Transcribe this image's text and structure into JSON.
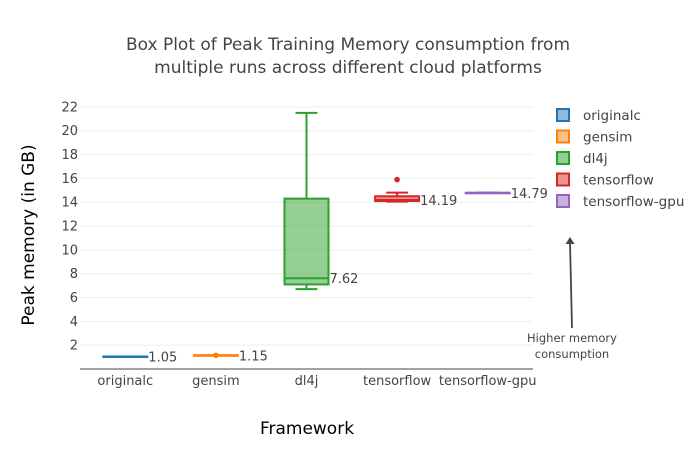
{
  "chart_data": {
    "type": "box",
    "title_lines": [
      "Box Plot of Peak Training Memory consumption from",
      "multiple runs across different cloud platforms"
    ],
    "xlabel": "Framework",
    "ylabel": "Peak memory (in GB)",
    "ylim": [
      0,
      23
    ],
    "yticks": [
      2,
      4,
      6,
      8,
      10,
      12,
      14,
      16,
      18,
      20,
      22
    ],
    "categories": [
      "originalc",
      "gensim",
      "dl4j",
      "tensorflow",
      "tensorflow-gpu"
    ],
    "series": [
      {
        "name": "originalc",
        "color": "#1f77b4",
        "min": 1.05,
        "q1": 1.05,
        "median": 1.05,
        "q3": 1.05,
        "max": 1.05,
        "outliers": [],
        "median_label": "1.05"
      },
      {
        "name": "gensim",
        "color": "#ff7f0e",
        "min": 1.15,
        "q1": 1.15,
        "median": 1.15,
        "q3": 1.15,
        "max": 1.15,
        "outliers": [
          1.15
        ],
        "median_label": "1.15"
      },
      {
        "name": "dl4j",
        "color": "#2ca02c",
        "min": 6.7,
        "q1": 7.1,
        "median": 7.62,
        "q3": 14.3,
        "max": 21.5,
        "outliers": [],
        "median_label": "7.62"
      },
      {
        "name": "tensorflow",
        "color": "#d62728",
        "min": 14.05,
        "q1": 14.1,
        "median": 14.19,
        "q3": 14.5,
        "max": 14.8,
        "outliers": [
          15.9
        ],
        "median_label": "14.19"
      },
      {
        "name": "tensorflow-gpu",
        "color": "#9467bd",
        "min": 14.79,
        "q1": 14.79,
        "median": 14.79,
        "q3": 14.79,
        "max": 14.79,
        "outliers": [],
        "median_label": "14.79"
      }
    ],
    "legend_position": "right",
    "annotation": {
      "text_lines": [
        "Higher memory",
        "consumption"
      ],
      "arrow": "up"
    }
  }
}
